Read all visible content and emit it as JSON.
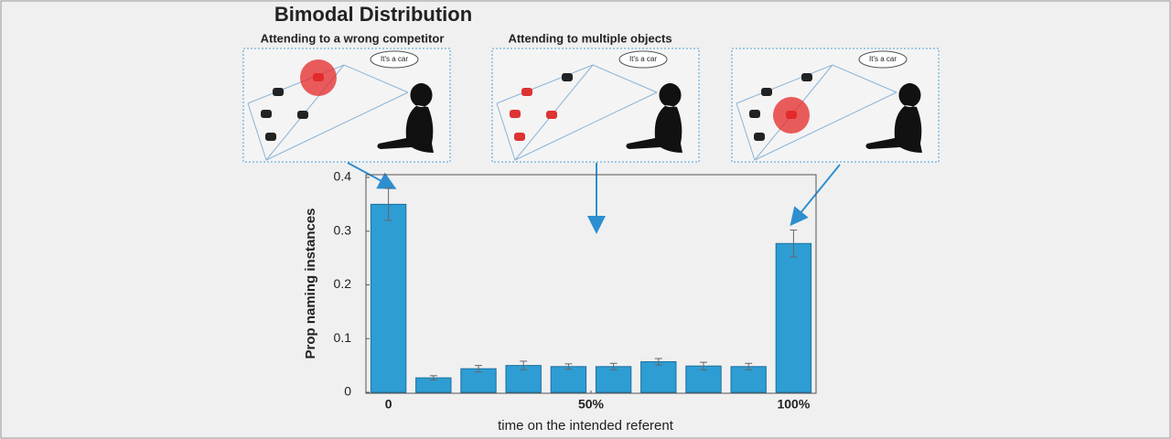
{
  "chart_data": {
    "type": "bar",
    "title": "Bimodal Distribution",
    "x": [
      0,
      1,
      2,
      3,
      4,
      5,
      6,
      7,
      8,
      9
    ],
    "values": [
      0.35,
      0.027,
      0.044,
      0.05,
      0.048,
      0.048,
      0.057,
      0.049,
      0.048,
      0.277
    ],
    "errors": [
      0.03,
      0.004,
      0.006,
      0.008,
      0.005,
      0.006,
      0.006,
      0.007,
      0.006,
      0.025
    ],
    "color": "#2d9dd3",
    "xlim": [
      -0.5,
      9.5
    ],
    "xticks": [
      {
        "value": 0,
        "label": "0"
      },
      {
        "value": 4.5,
        "label": "50%"
      },
      {
        "value": 9,
        "label": "100%"
      }
    ],
    "ylim": [
      0,
      0.4
    ],
    "yticks": [
      0,
      0.1,
      0.2,
      0.3,
      0.4
    ],
    "ylabel": "Prop  naming instances",
    "xlabel": "time on the intended referent"
  },
  "illustrations": {
    "panel_labels": [
      "Attending to a wrong competitor",
      "Attending to multiple objects"
    ],
    "speech": [
      "It's a car",
      "It's a car",
      "It's a car"
    ]
  }
}
